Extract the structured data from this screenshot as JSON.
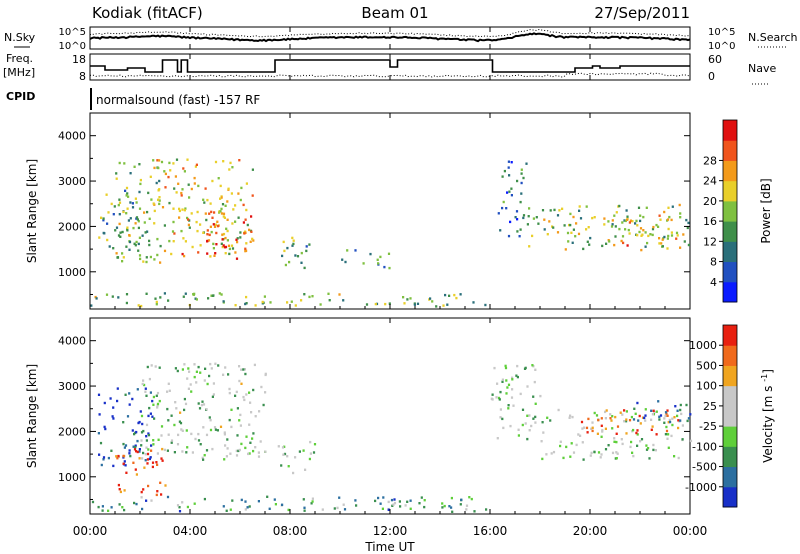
{
  "header": {
    "station": "Kodiak (fitACF)",
    "beam": "Beam 01",
    "date": "27/Sep/2011"
  },
  "summary": {
    "left_labels": {
      "nsky": "N.Sky",
      "freq_line1": "Freq.",
      "freq_line2": "[MHz]",
      "cpid": "CPID"
    },
    "right_labels": {
      "nsearch": "N.Search",
      "nave": "Nave"
    },
    "nsky_ticks": [
      "10^5",
      "10^0"
    ],
    "nsearch_ticks": [
      "10^5",
      "10^0"
    ],
    "freq_ticks": [
      "18",
      "8"
    ],
    "nave_ticks": [
      "60",
      "0"
    ],
    "cpid_text": "normalsound (fast) -157 RF",
    "freq_steps": [
      {
        "t": 0.0,
        "v": 14
      },
      {
        "t": 0.6,
        "v": 12
      },
      {
        "t": 1.5,
        "v": 13
      },
      {
        "t": 2.2,
        "v": 11
      },
      {
        "t": 2.9,
        "v": 17
      },
      {
        "t": 3.5,
        "v": 11
      },
      {
        "t": 3.65,
        "v": 17
      },
      {
        "t": 3.9,
        "v": 11
      },
      {
        "t": 7.4,
        "v": 17
      },
      {
        "t": 12.0,
        "v": 13.5
      },
      {
        "t": 12.3,
        "v": 17
      },
      {
        "t": 16.1,
        "v": 11
      },
      {
        "t": 19.4,
        "v": 13
      },
      {
        "t": 20.1,
        "v": 14
      },
      {
        "t": 20.4,
        "v": 13
      },
      {
        "t": 21.2,
        "v": 14
      },
      {
        "t": 22.4,
        "v": 14
      },
      {
        "t": 24.0,
        "v": 14
      }
    ]
  },
  "chart_data": [
    {
      "type": "heatmap",
      "name": "Power",
      "xlabel": "",
      "ylabel": "Slant Range [km]",
      "xlim": [
        0,
        24
      ],
      "ylim": [
        180,
        4500
      ],
      "yticks": [
        1000,
        2000,
        3000,
        4000
      ],
      "colorbar": {
        "label": "Power [dB]",
        "ticks": [
          4,
          8,
          12,
          16,
          20,
          24,
          28
        ],
        "colors": [
          "#0a1bff",
          "#2150c0",
          "#2a6f7a",
          "#3f8f4a",
          "#7fc040",
          "#e9cf2a",
          "#f39a1a",
          "#f0541c",
          "#e01010"
        ]
      },
      "echo_regions": [
        {
          "x": [
            0.3,
            2.0
          ],
          "y": [
            1500,
            2900
          ],
          "level": 0.4
        },
        {
          "x": [
            1.0,
            2.8
          ],
          "y": [
            1200,
            3500
          ],
          "level": 0.5
        },
        {
          "x": [
            2.5,
            6.5
          ],
          "y": [
            1400,
            3500
          ],
          "level": 0.6
        },
        {
          "x": [
            3.5,
            6.5
          ],
          "y": [
            1300,
            2400
          ],
          "level": 0.75
        },
        {
          "x": [
            0.0,
            16.0
          ],
          "y": [
            260,
            560
          ],
          "level": 0.45
        },
        {
          "x": [
            7.5,
            9.0
          ],
          "y": [
            1100,
            1800
          ],
          "level": 0.4
        },
        {
          "x": [
            10.0,
            12.0
          ],
          "y": [
            1100,
            1500
          ],
          "level": 0.35
        },
        {
          "x": [
            16.3,
            17.5
          ],
          "y": [
            1800,
            3500
          ],
          "level": 0.3
        },
        {
          "x": [
            17.5,
            24.0
          ],
          "y": [
            1500,
            2500
          ],
          "level": 0.5
        },
        {
          "x": [
            20.5,
            23.5
          ],
          "y": [
            1600,
            2300
          ],
          "level": 0.7
        }
      ]
    },
    {
      "type": "heatmap",
      "name": "Velocity",
      "xlabel": "Time UT",
      "ylabel": "Slant Range [km]",
      "xlim": [
        0,
        24
      ],
      "ylim": [
        180,
        4500
      ],
      "xticks": [
        "00:00",
        "04:00",
        "08:00",
        "12:00",
        "16:00",
        "20:00",
        "00:00"
      ],
      "yticks": [
        1000,
        2000,
        3000,
        4000
      ],
      "colorbar": {
        "label": "Velocity [m s^-1]",
        "ticks": [
          1000,
          500,
          100,
          25,
          -25,
          -100,
          -500,
          -1000
        ],
        "colors": [
          "#1830c8",
          "#2c6fa0",
          "#3a8f4f",
          "#5fcf3a",
          "#c8c8c8",
          "#c8c8c8",
          "#f0a520",
          "#f06a1c",
          "#e82010"
        ]
      },
      "echo_regions": [
        {
          "x": [
            0.3,
            2.5
          ],
          "y": [
            1200,
            3000
          ],
          "level": 0.1
        },
        {
          "x": [
            1.0,
            3.0
          ],
          "y": [
            600,
            1800
          ],
          "level": 0.85
        },
        {
          "x": [
            2.0,
            7.0
          ],
          "y": [
            1400,
            3600
          ],
          "level": 0.45
        },
        {
          "x": [
            0.0,
            16.0
          ],
          "y": [
            250,
            600
          ],
          "level": 0.3
        },
        {
          "x": [
            7.5,
            9.0
          ],
          "y": [
            1100,
            1800
          ],
          "level": 0.45
        },
        {
          "x": [
            16.0,
            18.0
          ],
          "y": [
            1800,
            3500
          ],
          "level": 0.45
        },
        {
          "x": [
            18.0,
            24.0
          ],
          "y": [
            1400,
            2500
          ],
          "level": 0.45
        },
        {
          "x": [
            19.5,
            23.5
          ],
          "y": [
            1900,
            2500
          ],
          "level": 0.85
        },
        {
          "x": [
            21.5,
            24.0
          ],
          "y": [
            2200,
            2700
          ],
          "level": 0.15
        }
      ]
    }
  ]
}
